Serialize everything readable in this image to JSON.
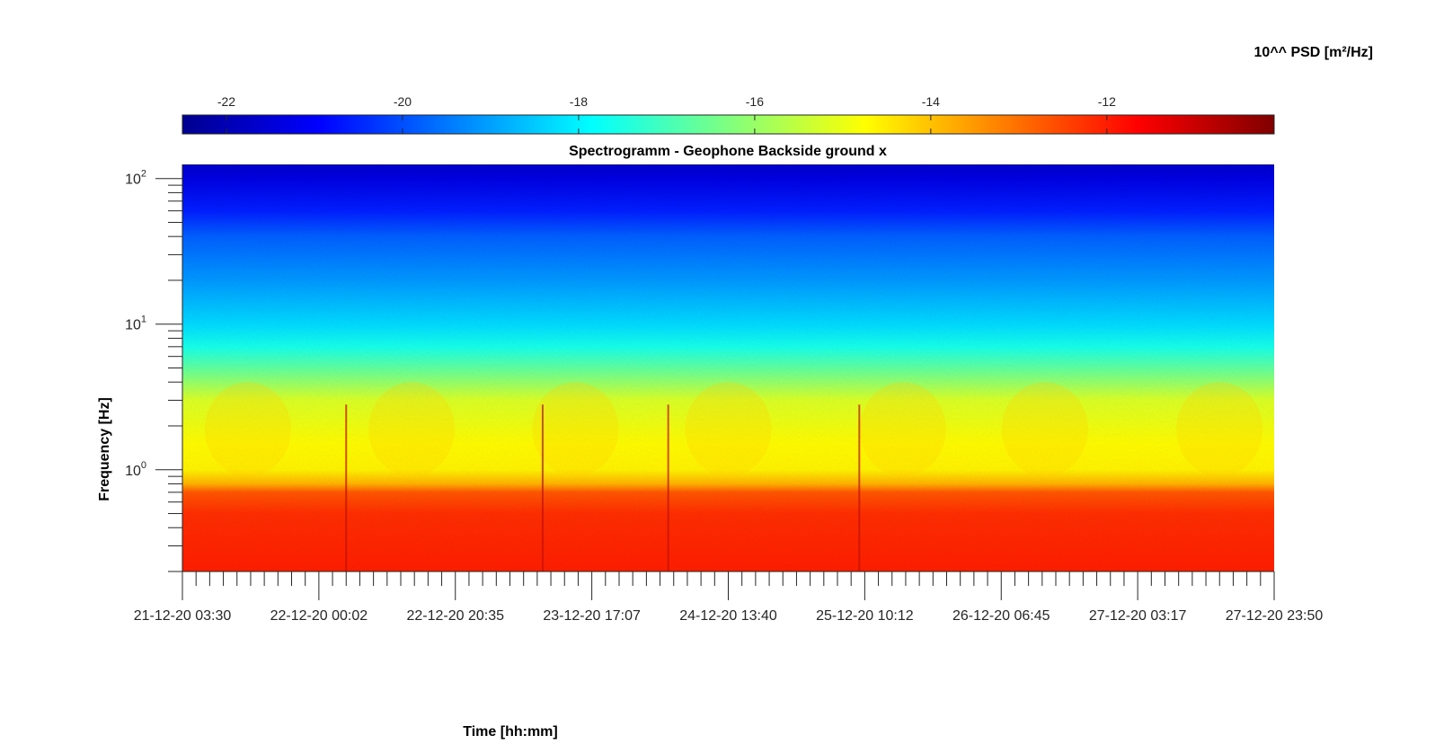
{
  "chart_data": {
    "type": "heatmap",
    "title": "Spectrogramm - Geophone Backside ground x",
    "xlabel": "Time [hh:mm]",
    "ylabel": "Frequency [Hz]",
    "colorbar_label": "10^^ PSD [m²/Hz]",
    "colormap": "jet",
    "y_scale": "log",
    "ylim": [
      0.2,
      125
    ],
    "x_ticks": [
      "21-12-20 03:30",
      "22-12-20 00:02",
      "22-12-20 20:35",
      "23-12-20 17:07",
      "24-12-20 13:40",
      "25-12-20 10:12",
      "26-12-20 06:45",
      "27-12-20 03:17",
      "27-12-20 23:50"
    ],
    "y_ticks": [
      {
        "value": 1,
        "base": "10",
        "exp": "0"
      },
      {
        "value": 10,
        "base": "10",
        "exp": "1"
      },
      {
        "value": 100,
        "base": "10",
        "exp": "2"
      }
    ],
    "colorbar_range": [
      -22.5,
      -10.1
    ],
    "colorbar_ticks": [
      -22,
      -20,
      -18,
      -16,
      -14,
      -12
    ],
    "colorbar_tick_labels": [
      "-22",
      "-20",
      "-18",
      "-16",
      "-14",
      "-12"
    ],
    "psd_profile": [
      {
        "freq": 125,
        "log_psd": -21.6
      },
      {
        "freq": 100,
        "log_psd": -21.3
      },
      {
        "freq": 60,
        "log_psd": -20.6
      },
      {
        "freq": 40,
        "log_psd": -19.8
      },
      {
        "freq": 20,
        "log_psd": -19.1
      },
      {
        "freq": 10,
        "log_psd": -18.3
      },
      {
        "freq": 7,
        "log_psd": -17.6
      },
      {
        "freq": 5,
        "log_psd": -16.7
      },
      {
        "freq": 3,
        "log_psd": -15.2
      },
      {
        "freq": 1.5,
        "log_psd": -14.7
      },
      {
        "freq": 1.0,
        "log_psd": -14.6
      },
      {
        "freq": 0.8,
        "log_psd": -13.8
      },
      {
        "freq": 0.7,
        "log_psd": -12.7
      },
      {
        "freq": 0.5,
        "log_psd": -12.2
      },
      {
        "freq": 0.2,
        "log_psd": -12.0
      }
    ]
  }
}
